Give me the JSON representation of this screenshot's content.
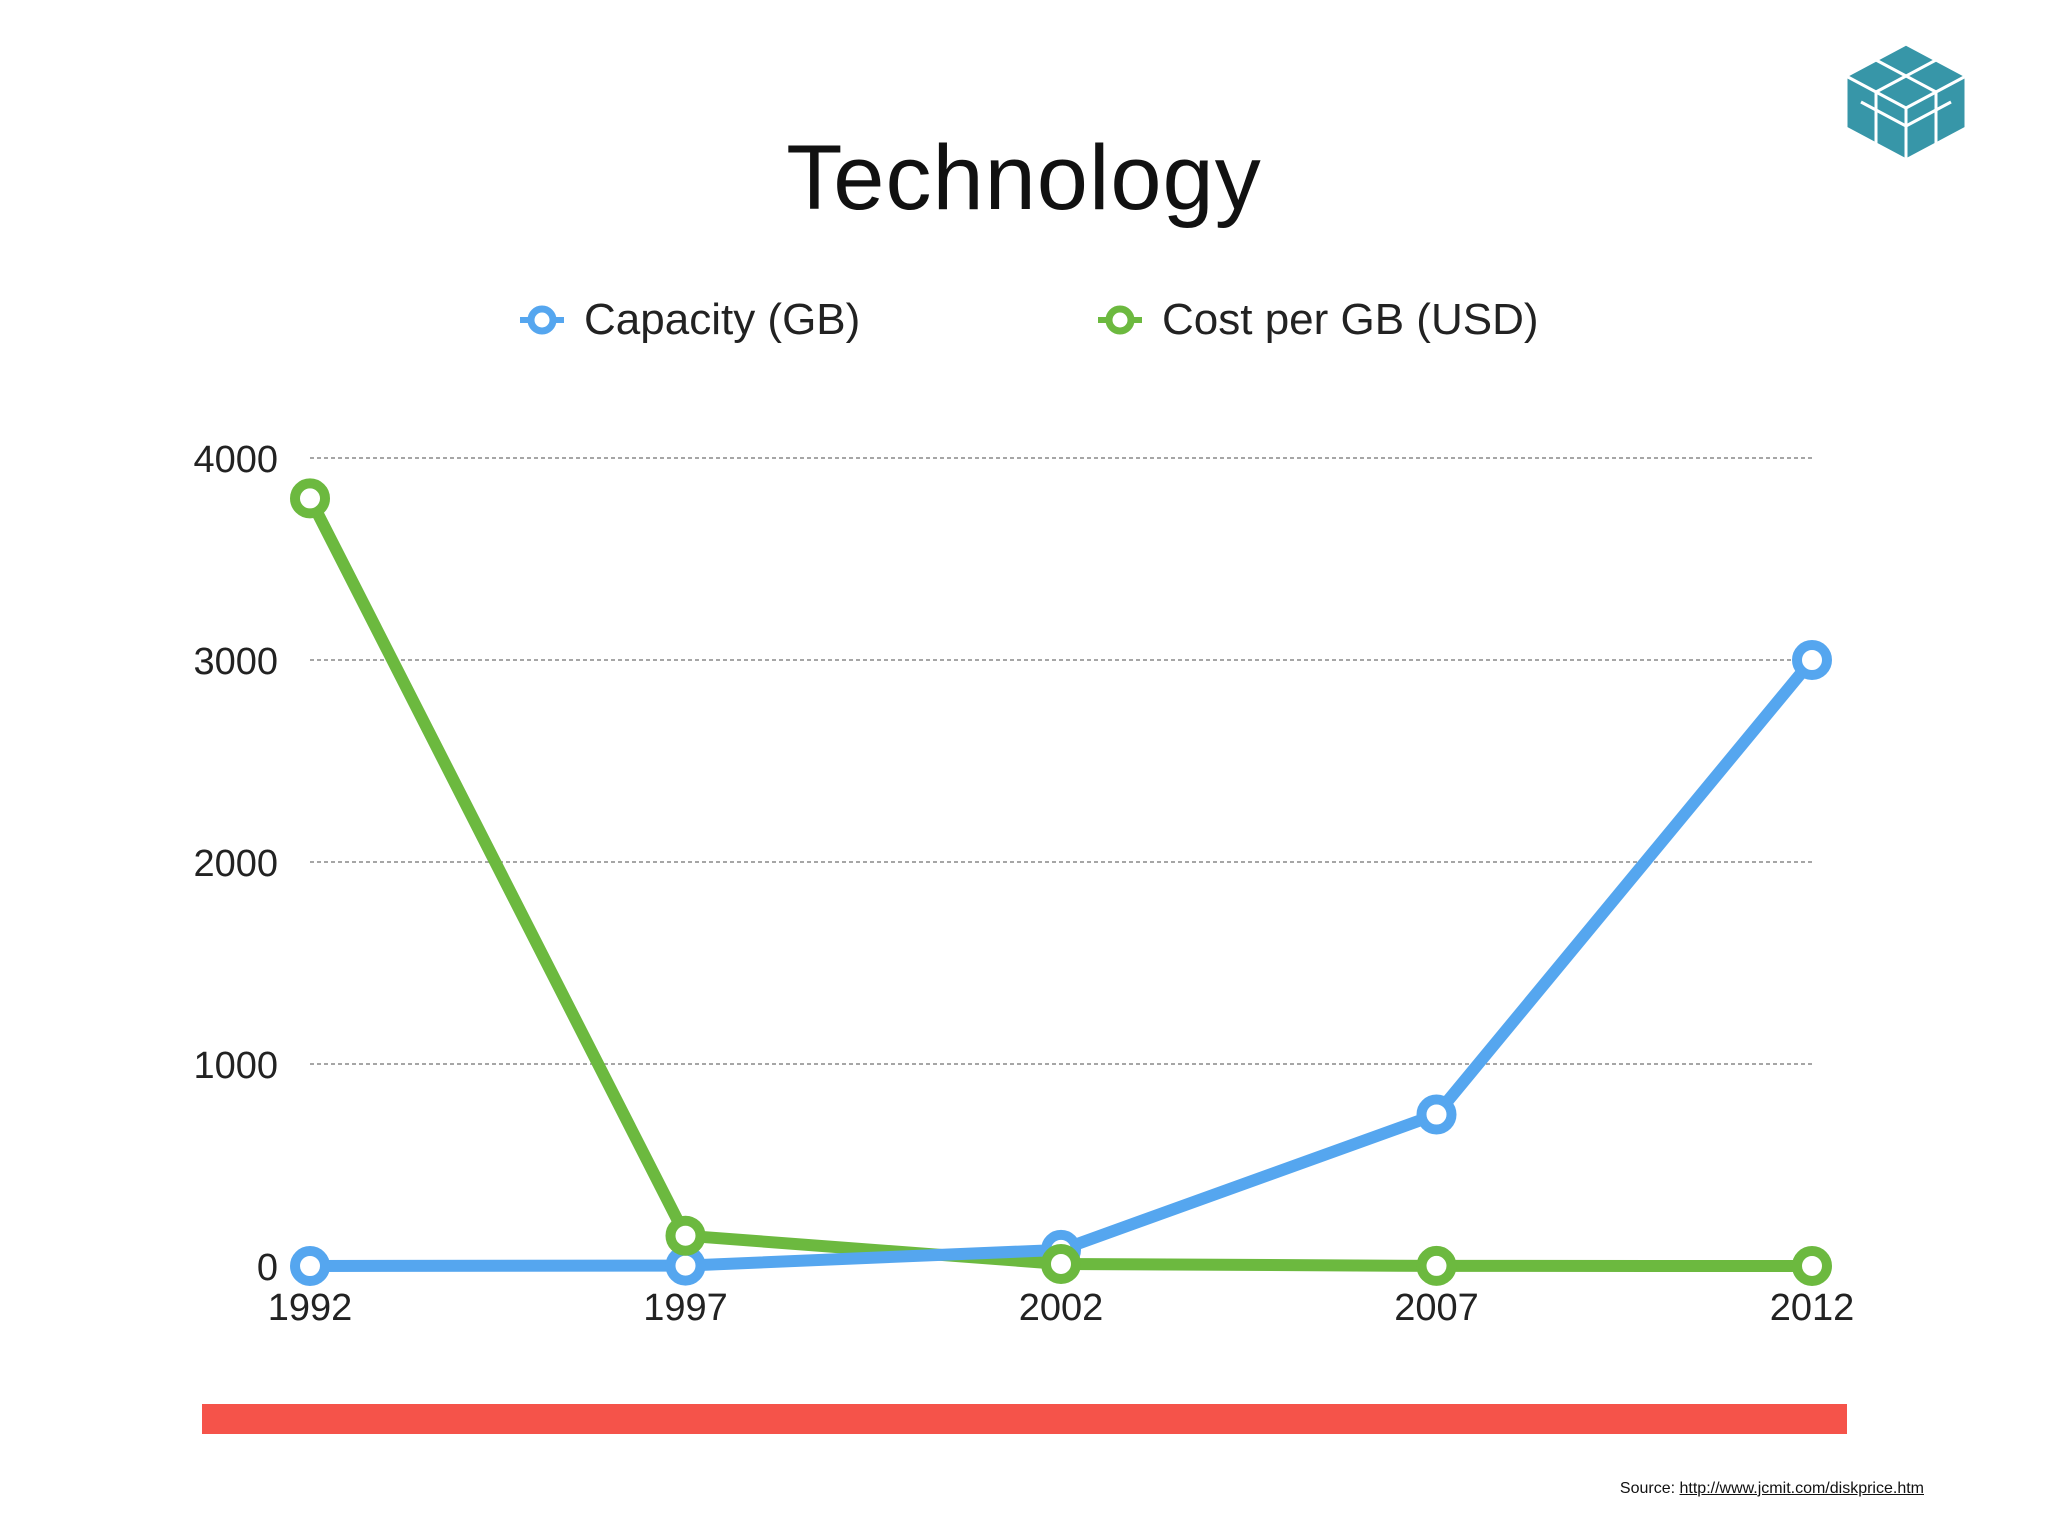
{
  "title": "Technology",
  "source": {
    "label": "Source:",
    "link_text": "http://www.jcmit.com/diskprice.htm"
  },
  "colors": {
    "capacity": "#55a6ef",
    "cost": "#6cb93f",
    "red_bar": "#f5534a",
    "logo": "#3796a8",
    "grid": "#888888"
  },
  "logo_icon": "cube-logo-icon",
  "chart_data": {
    "type": "line",
    "categories": [
      "1992",
      "1997",
      "2002",
      "2007",
      "2012"
    ],
    "series": [
      {
        "name": "Capacity (GB)",
        "values": [
          0,
          2,
          80,
          750,
          3000
        ]
      },
      {
        "name": "Cost per GB (USD)",
        "values": [
          3800,
          150,
          10,
          0.5,
          0.06
        ]
      }
    ],
    "title": "",
    "xlabel": "",
    "ylabel": "",
    "ylim": [
      0,
      4000
    ],
    "yticks": [
      "0",
      "1000",
      "2000",
      "3000",
      "4000"
    ],
    "grid": true,
    "legend_position": "top"
  }
}
